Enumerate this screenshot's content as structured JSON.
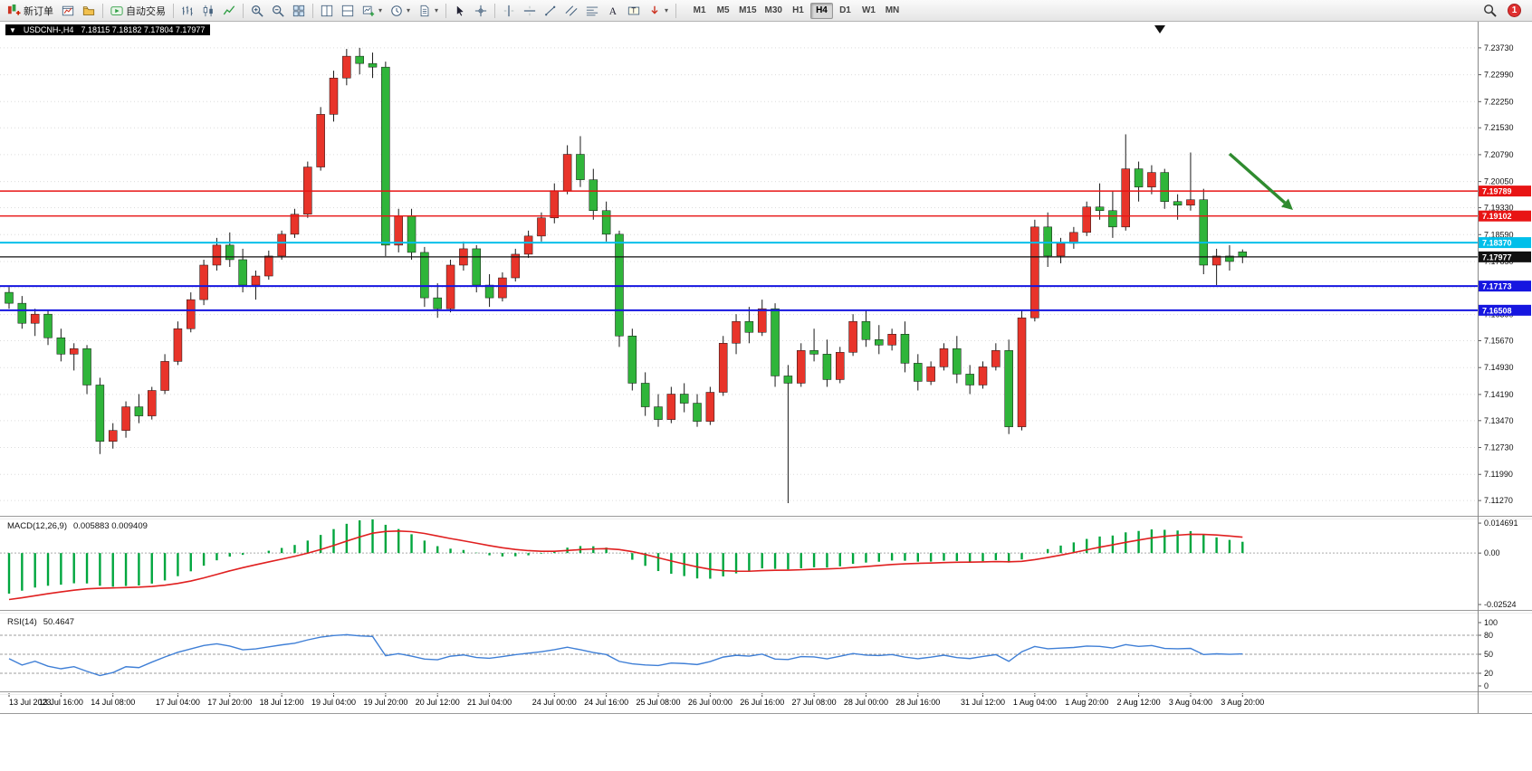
{
  "toolbar": {
    "new_order_label": "新订单",
    "autotrading_label": "自动交易",
    "notification_count": "1",
    "timeframes": [
      "M1",
      "M5",
      "M15",
      "M30",
      "H1",
      "H4",
      "D1",
      "W1",
      "MN"
    ],
    "active_timeframe": "H4",
    "buttons": [
      {
        "name": "new-order",
        "label": "新订单"
      },
      {
        "name": "charts"
      },
      {
        "name": "profiles"
      },
      {
        "sep": true
      },
      {
        "name": "autotrading",
        "label": "自动交易"
      },
      {
        "sep": true
      },
      {
        "name": "chart-bars"
      },
      {
        "name": "chart-candles"
      },
      {
        "name": "chart-line"
      },
      {
        "sep": true
      },
      {
        "name": "zoom-in"
      },
      {
        "name": "zoom-out"
      },
      {
        "name": "tile-windows"
      },
      {
        "sep": true
      },
      {
        "name": "arrange-left"
      },
      {
        "name": "arrange-right"
      },
      {
        "name": "new-chart",
        "caret": true
      },
      {
        "name": "periods",
        "caret": true
      },
      {
        "name": "templates",
        "caret": true
      },
      {
        "sep": true
      },
      {
        "name": "cursor"
      },
      {
        "name": "crosshair"
      },
      {
        "sep": true
      },
      {
        "name": "vertical-line"
      },
      {
        "name": "horizontal-line"
      },
      {
        "name": "trendline"
      },
      {
        "name": "equidistant-channel"
      },
      {
        "name": "fibonacci"
      },
      {
        "name": "text"
      },
      {
        "name": "text-label"
      },
      {
        "name": "arrows",
        "caret": true
      },
      {
        "sep": true
      }
    ]
  },
  "chart_meta": {
    "collapse_glyph": "▼",
    "title": "USDCNH-,H4",
    "ohlc_text": "7.18115 7.18182 7.17804 7.17977",
    "open": "7.18115",
    "high": "7.18182",
    "low": "7.17804",
    "close": "7.17977"
  },
  "chart_data": {
    "type": "candlestick",
    "symbol": "USDCNH-",
    "period": "H4",
    "bull_color": "#e8342a",
    "bear_color": "#2fb53a",
    "wick_color": "#1a1a1a",
    "price_axis_labels": [
      "7.23730",
      "7.22990",
      "7.22250",
      "7.21530",
      "7.20790",
      "7.20050",
      "7.19330",
      "7.18590",
      "7.17850",
      "7.17130",
      "7.16390",
      "7.15670",
      "7.14930",
      "7.14190",
      "7.13470",
      "7.12730",
      "7.11990",
      "7.11270"
    ],
    "time_axis_labels": [
      {
        "i": 0,
        "t": "13 Jul 2023"
      },
      {
        "i": 4,
        "t": "13 Jul 16:00"
      },
      {
        "i": 8,
        "t": "14 Jul 08:00"
      },
      {
        "i": 13,
        "t": "17 Jul 04:00"
      },
      {
        "i": 17,
        "t": "17 Jul 20:00"
      },
      {
        "i": 21,
        "t": "18 Jul 12:00"
      },
      {
        "i": 25,
        "t": "19 Jul 04:00"
      },
      {
        "i": 29,
        "t": "19 Jul 20:00"
      },
      {
        "i": 33,
        "t": "20 Jul 12:00"
      },
      {
        "i": 37,
        "t": "21 Jul 04:00"
      },
      {
        "i": 42,
        "t": "24 Jul 00:00"
      },
      {
        "i": 46,
        "t": "24 Jul 16:00"
      },
      {
        "i": 50,
        "t": "25 Jul 08:00"
      },
      {
        "i": 54,
        "t": "26 Jul 00:00"
      },
      {
        "i": 58,
        "t": "26 Jul 16:00"
      },
      {
        "i": 62,
        "t": "27 Jul 08:00"
      },
      {
        "i": 66,
        "t": "28 Jul 00:00"
      },
      {
        "i": 70,
        "t": "28 Jul 16:00"
      },
      {
        "i": 75,
        "t": "31 Jul 12:00"
      },
      {
        "i": 79,
        "t": "1 Aug 04:00"
      },
      {
        "i": 83,
        "t": "1 Aug 20:00"
      },
      {
        "i": 87,
        "t": "2 Aug 12:00"
      },
      {
        "i": 91,
        "t": "3 Aug 04:00"
      },
      {
        "i": 95,
        "t": "3 Aug 20:00"
      }
    ],
    "candles": [
      [
        7.17,
        7.1715,
        7.1655,
        7.167
      ],
      [
        7.167,
        7.169,
        7.16,
        7.1615
      ],
      [
        7.1615,
        7.1655,
        7.158,
        7.164
      ],
      [
        7.164,
        7.165,
        7.1555,
        7.1575
      ],
      [
        7.1575,
        7.16,
        7.151,
        7.153
      ],
      [
        7.153,
        7.156,
        7.1485,
        7.1545
      ],
      [
        7.1545,
        7.1555,
        7.142,
        7.1445
      ],
      [
        7.1445,
        7.1465,
        7.1255,
        7.129
      ],
      [
        7.129,
        7.134,
        7.127,
        7.132
      ],
      [
        7.132,
        7.14,
        7.13,
        7.1385
      ],
      [
        7.1385,
        7.142,
        7.134,
        7.136
      ],
      [
        7.136,
        7.144,
        7.135,
        7.143
      ],
      [
        7.143,
        7.153,
        7.142,
        7.151
      ],
      [
        7.151,
        7.162,
        7.15,
        7.16
      ],
      [
        7.16,
        7.17,
        7.159,
        7.168
      ],
      [
        7.168,
        7.179,
        7.1665,
        7.1775
      ],
      [
        7.1775,
        7.185,
        7.176,
        7.183
      ],
      [
        7.183,
        7.1865,
        7.177,
        7.179
      ],
      [
        7.179,
        7.182,
        7.17,
        7.172
      ],
      [
        7.172,
        7.176,
        7.168,
        7.1745
      ],
      [
        7.1745,
        7.1815,
        7.1735,
        7.18
      ],
      [
        7.18,
        7.187,
        7.179,
        7.186
      ],
      [
        7.186,
        7.193,
        7.185,
        7.1915
      ],
      [
        7.1915,
        7.206,
        7.1905,
        7.2045
      ],
      [
        7.2045,
        7.221,
        7.2035,
        7.219
      ],
      [
        7.219,
        7.231,
        7.217,
        7.229
      ],
      [
        7.229,
        7.237,
        7.227,
        7.235
      ],
      [
        7.235,
        7.2373,
        7.23,
        7.233
      ],
      [
        7.233,
        7.236,
        7.229,
        7.232
      ],
      [
        7.232,
        7.2335,
        7.18,
        7.183
      ],
      [
        7.183,
        7.193,
        7.181,
        7.191
      ],
      [
        7.191,
        7.193,
        7.179,
        7.181
      ],
      [
        7.181,
        7.1825,
        7.166,
        7.1685
      ],
      [
        7.1685,
        7.1725,
        7.163,
        7.1655
      ],
      [
        7.1655,
        7.179,
        7.1645,
        7.1775
      ],
      [
        7.1775,
        7.184,
        7.176,
        7.182
      ],
      [
        7.182,
        7.183,
        7.17,
        7.172
      ],
      [
        7.172,
        7.175,
        7.166,
        7.1685
      ],
      [
        7.1685,
        7.1755,
        7.1675,
        7.174
      ],
      [
        7.174,
        7.182,
        7.173,
        7.1805
      ],
      [
        7.1805,
        7.187,
        7.1795,
        7.1855
      ],
      [
        7.1855,
        7.192,
        7.184,
        7.1905
      ],
      [
        7.1905,
        7.2,
        7.189,
        7.198
      ],
      [
        7.198,
        7.2105,
        7.197,
        7.208
      ],
      [
        7.208,
        7.213,
        7.199,
        7.201
      ],
      [
        7.201,
        7.204,
        7.19,
        7.1925
      ],
      [
        7.1925,
        7.195,
        7.184,
        7.186
      ],
      [
        7.186,
        7.187,
        7.155,
        7.158
      ],
      [
        7.158,
        7.16,
        7.143,
        7.145
      ],
      [
        7.145,
        7.148,
        7.136,
        7.1385
      ],
      [
        7.1385,
        7.142,
        7.133,
        7.135
      ],
      [
        7.135,
        7.144,
        7.134,
        7.142
      ],
      [
        7.142,
        7.145,
        7.137,
        7.1395
      ],
      [
        7.1395,
        7.142,
        7.133,
        7.1345
      ],
      [
        7.1345,
        7.144,
        7.1335,
        7.1425
      ],
      [
        7.1425,
        7.158,
        7.1415,
        7.156
      ],
      [
        7.156,
        7.164,
        7.153,
        7.162
      ],
      [
        7.162,
        7.166,
        7.156,
        7.159
      ],
      [
        7.159,
        7.168,
        7.158,
        7.1655
      ],
      [
        7.1655,
        7.167,
        7.144,
        7.147
      ],
      [
        7.147,
        7.15,
        7.112,
        7.145
      ],
      [
        7.145,
        7.156,
        7.144,
        7.154
      ],
      [
        7.154,
        7.16,
        7.151,
        7.153
      ],
      [
        7.153,
        7.157,
        7.144,
        7.146
      ],
      [
        7.146,
        7.155,
        7.145,
        7.1535
      ],
      [
        7.1535,
        7.164,
        7.1525,
        7.162
      ],
      [
        7.162,
        7.165,
        7.155,
        7.157
      ],
      [
        7.157,
        7.161,
        7.153,
        7.1555
      ],
      [
        7.1555,
        7.16,
        7.154,
        7.1585
      ],
      [
        7.1585,
        7.162,
        7.148,
        7.1505
      ],
      [
        7.1505,
        7.153,
        7.143,
        7.1455
      ],
      [
        7.1455,
        7.151,
        7.1445,
        7.1495
      ],
      [
        7.1495,
        7.156,
        7.1485,
        7.1545
      ],
      [
        7.1545,
        7.158,
        7.145,
        7.1475
      ],
      [
        7.1475,
        7.15,
        7.142,
        7.1445
      ],
      [
        7.1445,
        7.151,
        7.1435,
        7.1495
      ],
      [
        7.1495,
        7.156,
        7.1485,
        7.154
      ],
      [
        7.154,
        7.157,
        7.131,
        7.133
      ],
      [
        7.133,
        7.165,
        7.132,
        7.163
      ],
      [
        7.163,
        7.19,
        7.162,
        7.188
      ],
      [
        7.188,
        7.192,
        7.177,
        7.18
      ],
      [
        7.18,
        7.185,
        7.178,
        7.1835
      ],
      [
        7.1835,
        7.188,
        7.182,
        7.1865
      ],
      [
        7.1865,
        7.195,
        7.1855,
        7.1935
      ],
      [
        7.1935,
        7.2,
        7.19,
        7.1925
      ],
      [
        7.1925,
        7.198,
        7.185,
        7.188
      ],
      [
        7.188,
        7.2135,
        7.187,
        7.204
      ],
      [
        7.204,
        7.206,
        7.195,
        7.199
      ],
      [
        7.199,
        7.205,
        7.197,
        7.203
      ],
      [
        7.203,
        7.204,
        7.193,
        7.195
      ],
      [
        7.195,
        7.197,
        7.19,
        7.194
      ],
      [
        7.194,
        7.2085,
        7.1925,
        7.1955
      ],
      [
        7.1955,
        7.1985,
        7.175,
        7.1775
      ],
      [
        7.1775,
        7.182,
        7.172,
        7.18
      ],
      [
        7.18,
        7.183,
        7.176,
        7.1785
      ],
      [
        7.18115,
        7.18182,
        7.17804,
        7.17977
      ]
    ],
    "hlines": [
      {
        "name": "resistance-line-1",
        "price": 7.19789,
        "label": "7.19789",
        "color": "#e81414",
        "width": 1.4
      },
      {
        "name": "resistance-line-2",
        "price": 7.19102,
        "label": "7.19102",
        "color": "#e81414",
        "width": 1.4
      },
      {
        "name": "pivot-line",
        "price": 7.1837,
        "label": "7.18370",
        "color": "#00bfea",
        "width": 2
      },
      {
        "name": "support-line-1",
        "price": 7.17173,
        "label": "7.17173",
        "color": "#1616e0",
        "width": 2
      },
      {
        "name": "support-line-2",
        "price": 7.16508,
        "label": "7.16508",
        "color": "#1616e0",
        "width": 2
      }
    ],
    "current_price_line": {
      "price": 7.17977,
      "label": "7.17977",
      "color": "#111111"
    },
    "arrow_annotation": {
      "from": [
        1358,
        170
      ],
      "to": [
        1428,
        232
      ],
      "color": "#2f8b2f"
    },
    "macd": {
      "label": "MACD(12,26,9)",
      "value": "0.005883",
      "signal_value": "0.009409",
      "values_text": "0.005883 0.009409",
      "axis_labels": [
        "0.014691",
        "0.00",
        "-0.02524"
      ],
      "histogram_color": "#00a63e",
      "signal_color": "#e02020",
      "params": {
        "fast": 12,
        "slow": 26,
        "signal": 9
      }
    },
    "rsi": {
      "label": "RSI(14)",
      "value": "50.4647",
      "axis_labels": [
        "100",
        "80",
        "50",
        "20",
        "0"
      ],
      "levels": [
        80,
        50,
        20
      ],
      "line_color": "#3f7fd6",
      "period": 14
    }
  }
}
